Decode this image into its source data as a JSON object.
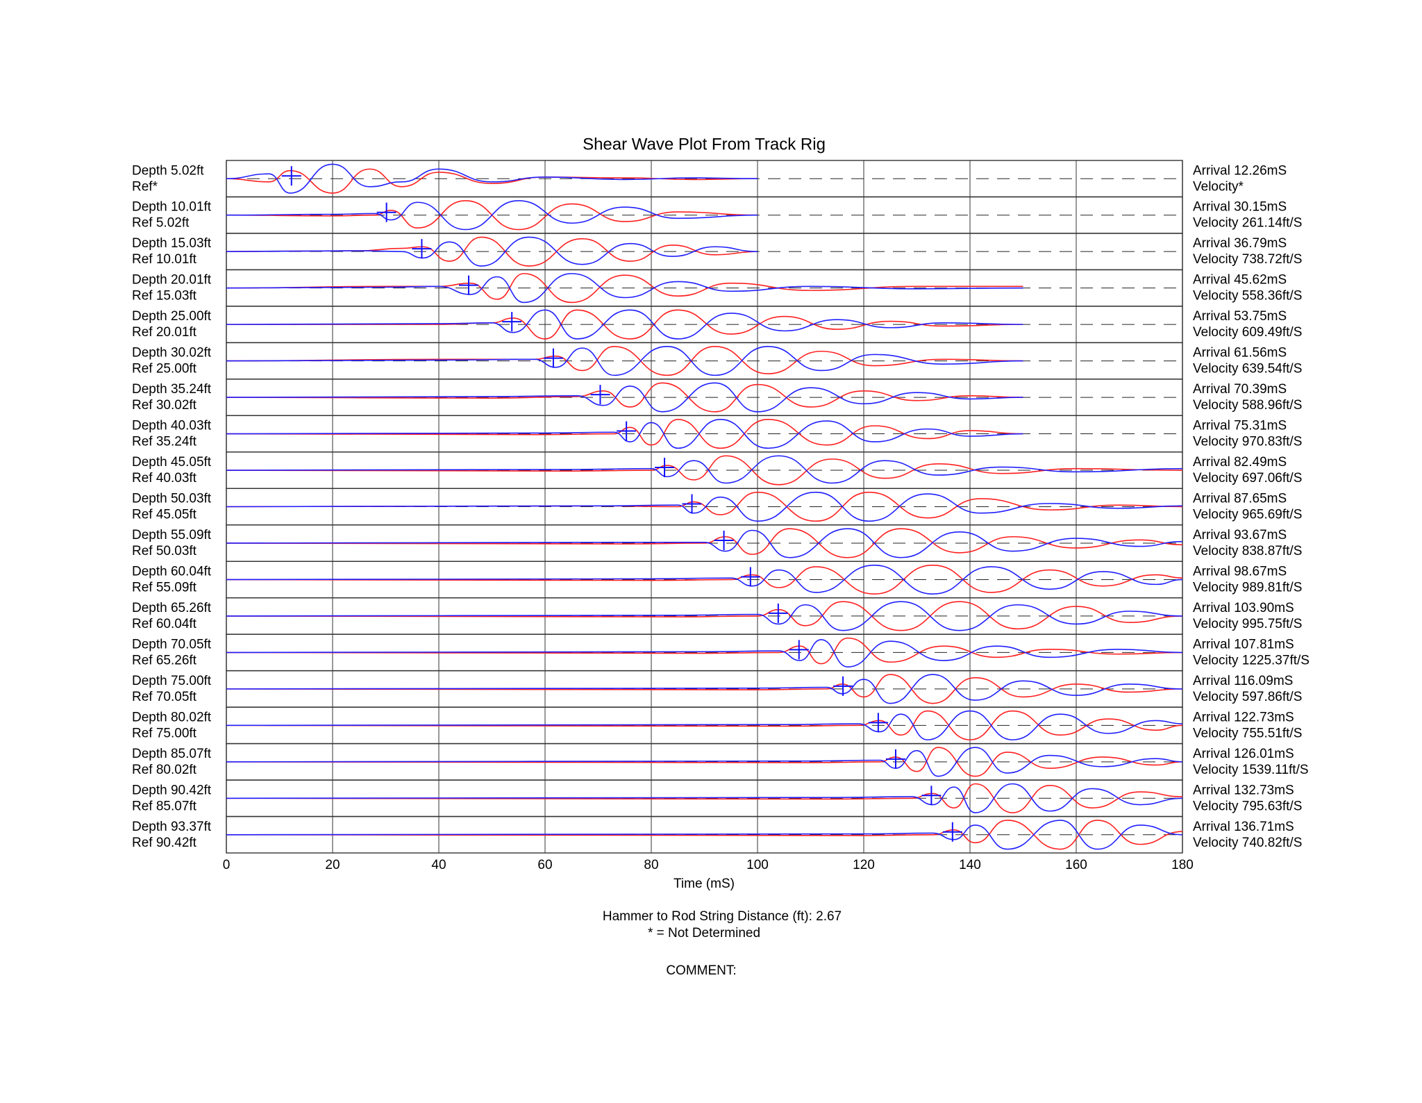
{
  "chart_data": {
    "type": "wave",
    "title": "Shear Wave Plot From Track Rig",
    "x_label": "Time (mS)",
    "xlim": [
      0,
      180
    ],
    "xticks": [
      0,
      20,
      40,
      60,
      80,
      100,
      120,
      140,
      160,
      180
    ],
    "ylim": [
      -1,
      1
    ],
    "colors": [
      "#2020ff",
      "#ff2020"
    ],
    "rows": [
      {
        "depth_label": "Depth 5.02ft",
        "ref_label": "Ref*",
        "arrival_label": "Arrival 12.26mS",
        "velocity_label": "Velocity*",
        "arrival": 12.26,
        "x": [
          0,
          8,
          12,
          20,
          27,
          33,
          40,
          50,
          60,
          75,
          88,
          100
        ],
        "blue": [
          0,
          0.3,
          -0.9,
          0.9,
          -0.5,
          -0.2,
          0.6,
          -0.2,
          0.1,
          -0.05,
          0.05,
          0
        ],
        "red": [
          0,
          -0.2,
          0.5,
          -0.9,
          0.6,
          -0.5,
          0.4,
          -0.3,
          0.1,
          0.05,
          -0.05,
          0
        ]
      },
      {
        "depth_label": "Depth 10.01ft",
        "ref_label": "Ref 5.02ft",
        "arrival_label": "Arrival 30.15mS",
        "velocity_label": "Velocity 261.14ft/S",
        "arrival": 30.15,
        "x": [
          0,
          20,
          28,
          31,
          36,
          45,
          55,
          65,
          75,
          85,
          100
        ],
        "blue": [
          0,
          0.05,
          0.1,
          -0.3,
          0.8,
          -0.9,
          0.9,
          -0.5,
          0.5,
          -0.2,
          0
        ],
        "red": [
          0,
          -0.05,
          0,
          0.3,
          -0.8,
          0.9,
          -0.9,
          0.7,
          -0.4,
          0.2,
          0
        ]
      },
      {
        "depth_label": "Depth 15.03ft",
        "ref_label": "Ref 10.01ft",
        "arrival_label": "Arrival 36.79mS",
        "velocity_label": "Velocity 738.72ft/S",
        "arrival": 36.79,
        "x": [
          0,
          25,
          33,
          37,
          42,
          48,
          57,
          67,
          76,
          84,
          92,
          100
        ],
        "blue": [
          0,
          0.05,
          0,
          -0.4,
          0.6,
          -0.9,
          0.9,
          -0.8,
          0.5,
          -0.3,
          0.3,
          0
        ],
        "red": [
          0,
          0.05,
          0.2,
          0.3,
          -0.6,
          0.9,
          -0.9,
          0.8,
          -0.6,
          0.4,
          -0.2,
          0
        ]
      },
      {
        "depth_label": "Depth 20.01ft",
        "ref_label": "Ref 15.03ft",
        "arrival_label": "Arrival 45.62mS",
        "velocity_label": "Velocity 558.36ft/S",
        "arrival": 45.62,
        "x": [
          0,
          30,
          40,
          46,
          51,
          56,
          65,
          75,
          85,
          95,
          110,
          130,
          150
        ],
        "blue": [
          0,
          0.05,
          0.1,
          -0.4,
          0.7,
          -0.9,
          0.9,
          -0.6,
          0.4,
          -0.2,
          0.1,
          -0.05,
          0
        ],
        "red": [
          0,
          0.1,
          0.1,
          0.3,
          -0.7,
          0.9,
          -0.9,
          0.8,
          -0.5,
          0.3,
          -0.15,
          0.1,
          0.1
        ]
      },
      {
        "depth_label": "Depth 25.00ft",
        "ref_label": "Ref 20.01ft",
        "arrival_label": "Arrival 53.75mS",
        "velocity_label": "Velocity 609.49ft/S",
        "arrival": 53.75,
        "x": [
          0,
          40,
          50,
          54,
          60,
          66,
          76,
          85,
          95,
          105,
          115,
          125,
          135,
          150
        ],
        "blue": [
          0,
          0.05,
          0.1,
          -0.5,
          0.9,
          -0.9,
          0.9,
          -0.9,
          0.7,
          -0.4,
          0.3,
          -0.2,
          0.1,
          0
        ],
        "red": [
          0,
          0,
          0.1,
          0.4,
          -0.9,
          0.9,
          -0.9,
          0.9,
          -0.6,
          0.5,
          -0.3,
          0.2,
          -0.1,
          0
        ]
      },
      {
        "depth_label": "Depth 30.02ft",
        "ref_label": "Ref 25.00ft",
        "arrival_label": "Arrival 61.56mS",
        "velocity_label": "Velocity 639.54ft/S",
        "arrival": 61.56,
        "x": [
          0,
          40,
          58,
          62,
          67,
          73,
          83,
          92,
          102,
          112,
          122,
          135,
          150
        ],
        "blue": [
          0,
          0.05,
          0.1,
          -0.4,
          0.8,
          -0.9,
          0.9,
          -0.9,
          0.9,
          -0.6,
          0.4,
          -0.2,
          0
        ],
        "red": [
          0,
          0.1,
          0.1,
          0.3,
          -0.6,
          0.9,
          -0.9,
          0.9,
          -0.8,
          0.6,
          -0.3,
          0.1,
          0
        ]
      },
      {
        "depth_label": "Depth 35.24ft",
        "ref_label": "Ref 30.02ft",
        "arrival_label": "Arrival 70.39mS",
        "velocity_label": "Velocity 588.96ft/S",
        "arrival": 70.39,
        "x": [
          0,
          50,
          66,
          71,
          76,
          82,
          92,
          100,
          110,
          120,
          130,
          140,
          150
        ],
        "blue": [
          0,
          0.05,
          0.1,
          -0.5,
          0.7,
          -0.9,
          0.9,
          -0.9,
          0.6,
          -0.4,
          0.3,
          -0.1,
          0
        ],
        "red": [
          0,
          -0.05,
          0.05,
          0.4,
          -0.6,
          0.9,
          -0.9,
          0.8,
          -0.6,
          0.4,
          -0.2,
          0.1,
          0
        ]
      },
      {
        "depth_label": "Depth 40.03ft",
        "ref_label": "Ref 35.24ft",
        "arrival_label": "Arrival 75.31mS",
        "velocity_label": "Velocity 970.83ft/S",
        "arrival": 75.31,
        "x": [
          0,
          60,
          73,
          76,
          80,
          85,
          93,
          102,
          113,
          122,
          132,
          140,
          150
        ],
        "blue": [
          0,
          0.05,
          0.1,
          -0.5,
          0.7,
          -0.9,
          0.9,
          -0.9,
          0.8,
          -0.5,
          0.3,
          -0.15,
          0
        ],
        "red": [
          0,
          -0.05,
          0,
          0.4,
          -0.7,
          0.9,
          -0.9,
          0.9,
          -0.7,
          0.5,
          -0.3,
          0.2,
          0
        ]
      },
      {
        "depth_label": "Depth 45.05ft",
        "ref_label": "Ref 40.03ft",
        "arrival_label": "Arrival 82.49mS",
        "velocity_label": "Velocity 697.06ft/S",
        "arrival": 82.49,
        "x": [
          0,
          65,
          80,
          83,
          88,
          94,
          104,
          114,
          124,
          134,
          146,
          160,
          180
        ],
        "blue": [
          0,
          0.05,
          0.1,
          -0.4,
          0.6,
          -0.8,
          0.9,
          -0.8,
          0.6,
          -0.3,
          0.2,
          -0.1,
          0.1
        ],
        "red": [
          0,
          -0.05,
          0,
          0.3,
          -0.6,
          0.9,
          -0.9,
          0.7,
          -0.5,
          0.4,
          -0.2,
          0.1,
          0
        ]
      },
      {
        "depth_label": "Depth 50.03ft",
        "ref_label": "Ref 45.05ft",
        "arrival_label": "Arrival 87.65mS",
        "velocity_label": "Velocity 965.69ft/S",
        "arrival": 87.65,
        "x": [
          0,
          70,
          85,
          88,
          93,
          100,
          111,
          121,
          132,
          142,
          155,
          168,
          180
        ],
        "blue": [
          0,
          0.05,
          0.1,
          -0.4,
          0.6,
          -0.9,
          0.9,
          -0.9,
          0.8,
          -0.4,
          0.2,
          -0.1,
          0.05
        ],
        "red": [
          0,
          0.05,
          0,
          0.3,
          -0.5,
          0.9,
          -0.9,
          0.9,
          -0.7,
          0.5,
          -0.2,
          0.1,
          0
        ]
      },
      {
        "depth_label": "Depth 55.09ft",
        "ref_label": "Ref 50.03ft",
        "arrival_label": "Arrival 93.67mS",
        "velocity_label": "Velocity 838.87ft/S",
        "arrival": 93.67,
        "x": [
          0,
          75,
          90,
          94,
          99,
          106,
          117,
          127,
          138,
          148,
          160,
          172,
          180
        ],
        "blue": [
          0,
          0.05,
          0.05,
          -0.5,
          0.8,
          -0.9,
          0.9,
          -0.9,
          0.7,
          -0.5,
          0.3,
          -0.2,
          0.1
        ],
        "red": [
          0,
          -0.05,
          0,
          0.4,
          -0.7,
          0.9,
          -0.9,
          0.9,
          -0.6,
          0.4,
          -0.3,
          0.2,
          -0.1
        ]
      },
      {
        "depth_label": "Depth 60.04ft",
        "ref_label": "Ref 55.09ft",
        "arrival_label": "Arrival 98.67mS",
        "velocity_label": "Velocity 989.81ft/S",
        "arrival": 98.67,
        "x": [
          0,
          80,
          95,
          99,
          104,
          111,
          122,
          133,
          144,
          155,
          165,
          175,
          180
        ],
        "blue": [
          0,
          0.05,
          0.1,
          -0.4,
          0.6,
          -0.8,
          0.9,
          -0.9,
          0.8,
          -0.6,
          0.5,
          -0.3,
          0
        ],
        "red": [
          0,
          -0.05,
          0,
          0.3,
          -0.5,
          0.8,
          -0.9,
          0.9,
          -0.8,
          0.6,
          -0.4,
          0.3,
          0.1
        ]
      },
      {
        "depth_label": "Depth 65.26ft",
        "ref_label": "Ref 60.04ft",
        "arrival_label": "Arrival 103.90mS",
        "velocity_label": "Velocity 995.75ft/S",
        "arrival": 103.9,
        "x": [
          0,
          85,
          100,
          104,
          109,
          116,
          127,
          138,
          149,
          160,
          170,
          180
        ],
        "blue": [
          0,
          0.05,
          0.1,
          -0.5,
          0.7,
          -0.9,
          0.9,
          -0.9,
          0.7,
          -0.5,
          0.3,
          0
        ],
        "red": [
          0,
          -0.05,
          0,
          0.4,
          -0.6,
          0.9,
          -0.9,
          0.9,
          -0.8,
          0.6,
          -0.4,
          0
        ]
      },
      {
        "depth_label": "Depth 70.05ft",
        "ref_label": "Ref 65.26ft",
        "arrival_label": "Arrival 107.81mS",
        "velocity_label": "Velocity 1225.37ft/S",
        "arrival": 107.81,
        "x": [
          0,
          90,
          104,
          108,
          112,
          117,
          125,
          135,
          145,
          155,
          168,
          180
        ],
        "blue": [
          0,
          0.05,
          0.1,
          -0.5,
          0.8,
          -0.9,
          0.7,
          -0.5,
          0.4,
          -0.3,
          0.2,
          0
        ],
        "red": [
          0,
          -0.05,
          0,
          0.4,
          -0.7,
          0.9,
          -0.6,
          0.4,
          -0.3,
          0.2,
          -0.1,
          0
        ]
      },
      {
        "depth_label": "Depth 75.00ft",
        "ref_label": "Ref 70.05ft",
        "arrival_label": "Arrival 116.09mS",
        "velocity_label": "Velocity 597.86ft/S",
        "arrival": 116.09,
        "x": [
          0,
          100,
          113,
          116,
          120,
          125,
          133,
          141,
          150,
          160,
          170,
          180
        ],
        "blue": [
          0,
          0.05,
          0.1,
          -0.3,
          0.6,
          -0.9,
          0.9,
          -0.7,
          0.5,
          -0.4,
          0.3,
          0
        ],
        "red": [
          0,
          -0.05,
          0,
          0.3,
          -0.5,
          0.9,
          -0.9,
          0.7,
          -0.5,
          0.3,
          -0.2,
          0
        ]
      },
      {
        "depth_label": "Depth 80.02ft",
        "ref_label": "Ref 75.00ft",
        "arrival_label": "Arrival 122.73mS",
        "velocity_label": "Velocity 755.51ft/S",
        "arrival": 122.73,
        "x": [
          0,
          105,
          119,
          123,
          127,
          132,
          140,
          148,
          157,
          166,
          175,
          180
        ],
        "blue": [
          0,
          0.05,
          0.1,
          -0.4,
          0.7,
          -0.9,
          0.9,
          -0.9,
          0.7,
          -0.5,
          0.3,
          0.1
        ],
        "red": [
          0,
          -0.05,
          0,
          0.3,
          -0.6,
          0.9,
          -0.9,
          0.9,
          -0.6,
          0.4,
          -0.3,
          0
        ]
      },
      {
        "depth_label": "Depth 85.07ft",
        "ref_label": "Ref 80.02ft",
        "arrival_label": "Arrival 126.01mS",
        "velocity_label": "Velocity 1539.11ft/S",
        "arrival": 126.01,
        "x": [
          0,
          110,
          123,
          126,
          130,
          134,
          141,
          147,
          155,
          165,
          175,
          180
        ],
        "blue": [
          0,
          0.05,
          0.1,
          -0.4,
          0.7,
          -0.9,
          0.9,
          -0.7,
          0.4,
          -0.3,
          0.2,
          0
        ],
        "red": [
          0,
          -0.05,
          0,
          0.3,
          -0.6,
          0.9,
          -0.9,
          0.6,
          -0.4,
          0.3,
          -0.2,
          0
        ]
      },
      {
        "depth_label": "Depth 90.42ft",
        "ref_label": "Ref 85.07ft",
        "arrival_label": "Arrival 132.73mS",
        "velocity_label": "Velocity 795.63ft/S",
        "arrival": 132.73,
        "x": [
          0,
          115,
          129,
          133,
          137,
          141,
          148,
          155,
          163,
          172,
          180
        ],
        "blue": [
          0,
          0.05,
          0.1,
          -0.4,
          0.7,
          -0.9,
          0.9,
          -0.8,
          0.6,
          -0.4,
          0
        ],
        "red": [
          0,
          -0.05,
          0,
          0.3,
          -0.6,
          0.9,
          -0.9,
          0.8,
          -0.6,
          0.4,
          0.1
        ]
      },
      {
        "depth_label": "Depth 93.37ft",
        "ref_label": "Ref 90.42ft",
        "arrival_label": "Arrival 136.71mS",
        "velocity_label": "Velocity 740.82ft/S",
        "arrival": 136.71,
        "x": [
          0,
          120,
          133,
          137,
          141,
          147,
          157,
          164,
          172,
          180
        ],
        "blue": [
          0,
          0.05,
          0.1,
          -0.3,
          0.6,
          -0.9,
          0.9,
          -0.9,
          0.6,
          0
        ],
        "red": [
          0,
          -0.05,
          0,
          0.3,
          -0.5,
          0.9,
          -0.9,
          0.9,
          -0.6,
          0.2
        ]
      }
    ],
    "footer": {
      "distance": "Hammer to Rod String Distance (ft): 2.67",
      "note": "* = Not Determined",
      "comment": "COMMENT:"
    }
  }
}
